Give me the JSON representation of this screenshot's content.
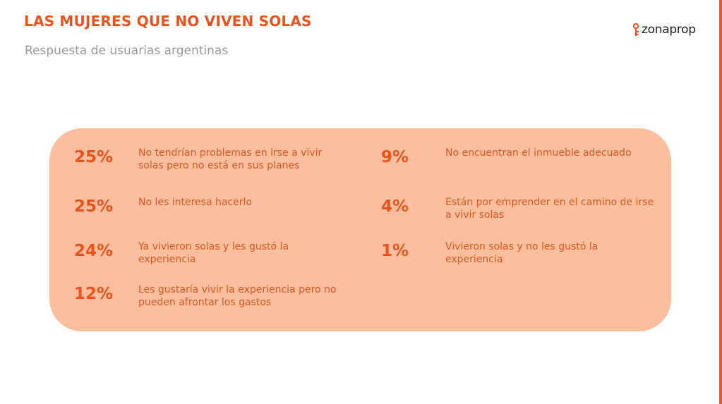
{
  "header": {
    "title": "LAS MUJERES QUE NO VIVEN SOLAS",
    "subtitle": "Respuesta de usuarias argentinas"
  },
  "logo": {
    "text": "zonaprop",
    "icon": "key-icon",
    "color": "#e8541f"
  },
  "colors": {
    "accent": "#e8541f",
    "panel": "#fcbe9d",
    "subtitle": "#9a9a9a"
  },
  "stats_left": [
    {
      "value": "25%",
      "label": "No tendrían problemas en irse a vivir solas pero no está en sus planes"
    },
    {
      "value": "25%",
      "label": "No les interesa hacerlo"
    },
    {
      "value": "24%",
      "label": "Ya vivieron solas y les gustó la experiencia"
    },
    {
      "value": "12%",
      "label": "Les gustaría vivir la experiencia pero no pueden afrontar los gastos"
    }
  ],
  "stats_right": [
    {
      "value": "9%",
      "label": "No encuentran el inmueble adecuado"
    },
    {
      "value": "4%",
      "label": "Están por emprender en el camino de irse a vivir solas"
    },
    {
      "value": "1%",
      "label": "Vivieron solas y no les gustó la experiencia"
    }
  ]
}
